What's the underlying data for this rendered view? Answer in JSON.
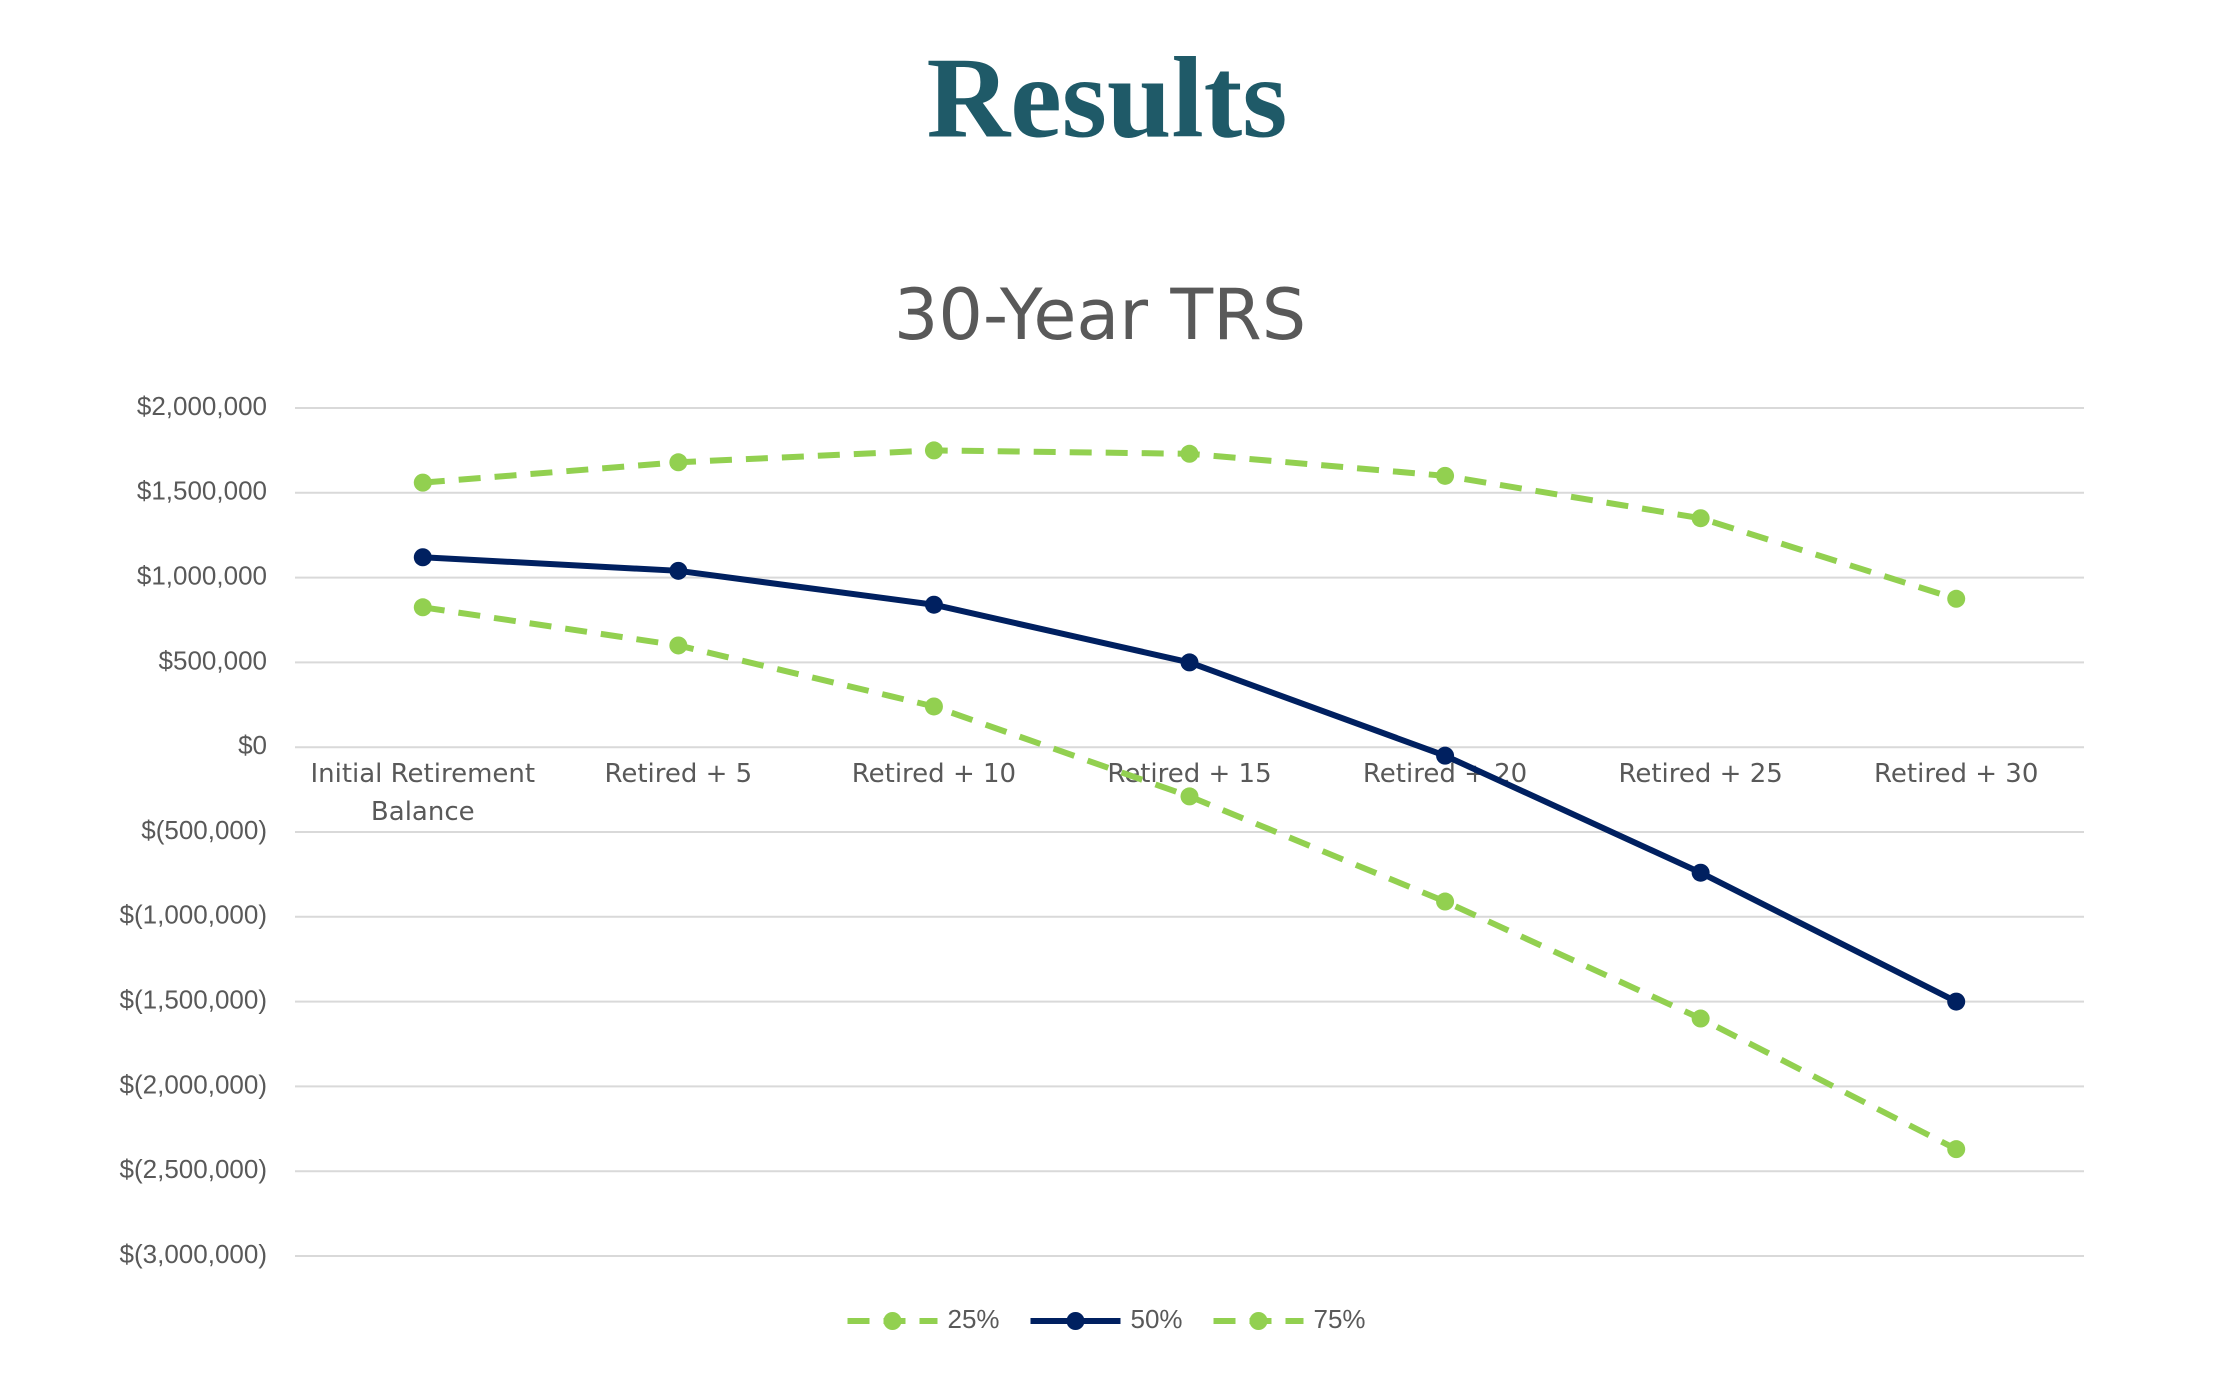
{
  "header": {
    "title": "Results"
  },
  "chart_data": {
    "type": "line",
    "title": "30-Year TRS",
    "categories": [
      "Initial Retirement Balance",
      "Retired + 5",
      "Retired + 10",
      "Retired + 15",
      "Retired + 20",
      "Retired + 25",
      "Retired + 30"
    ],
    "series": [
      {
        "name": "25%",
        "color": "#92d050",
        "style": "dashed",
        "values": [
          825000,
          600000,
          240000,
          -290000,
          -910000,
          -1600000,
          -2370000
        ]
      },
      {
        "name": "50%",
        "color": "#002060",
        "style": "solid",
        "values": [
          1120000,
          1040000,
          840000,
          500000,
          -50000,
          -740000,
          -1500000
        ]
      },
      {
        "name": "75%",
        "color": "#92d050",
        "style": "dashed",
        "values": [
          1560000,
          1680000,
          1750000,
          1730000,
          1600000,
          1350000,
          875000
        ]
      }
    ],
    "ylim": [
      -3000000,
      2000000
    ],
    "yticks": [
      {
        "value": -3000000,
        "label": "$(3,000,000)"
      },
      {
        "value": -2500000,
        "label": "$(2,500,000)"
      },
      {
        "value": -2000000,
        "label": "$(2,000,000)"
      },
      {
        "value": -1500000,
        "label": "$(1,500,000)"
      },
      {
        "value": -1000000,
        "label": "$(1,000,000)"
      },
      {
        "value": -500000,
        "label": "$(500,000)"
      },
      {
        "value": 0,
        "label": "$0"
      },
      {
        "value": 500000,
        "label": "$500,000"
      },
      {
        "value": 1000000,
        "label": "$1,000,000"
      },
      {
        "value": 1500000,
        "label": "$1,500,000"
      },
      {
        "value": 2000000,
        "label": "$2,000,000"
      }
    ],
    "grid": true,
    "legend": "bottom"
  }
}
